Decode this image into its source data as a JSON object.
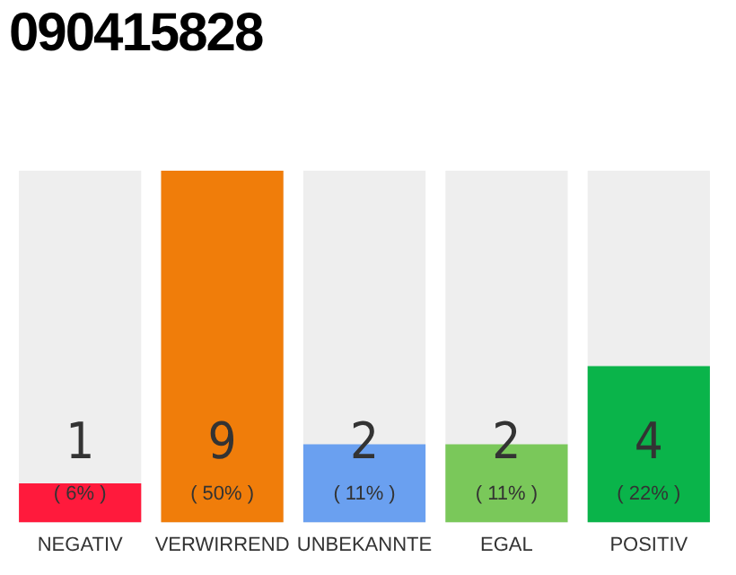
{
  "chart_data": {
    "type": "bar",
    "title": "090415828",
    "categories": [
      "NEGATIV",
      "VERWIRREND",
      "UNBEKANNTE",
      "EGAL",
      "POSITIV"
    ],
    "values": [
      1,
      9,
      2,
      2,
      4
    ],
    "colors": [
      "#ff1a3c",
      "#f07d0a",
      "#6aa0f0",
      "#7ac85a",
      "#0ab44a"
    ],
    "value_labels": [
      "1\n( 6% )",
      "9\n( 50% )",
      "2\n( 11% )",
      "2\n( 11% )",
      "4\n( 22% )"
    ],
    "grid": false,
    "legend": false
  }
}
